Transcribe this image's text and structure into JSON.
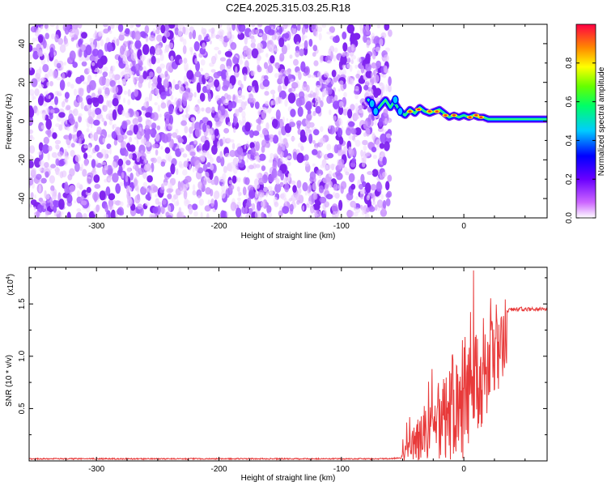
{
  "title": "C2E4.2025.315.03.25.R18",
  "chart_data": [
    {
      "type": "heatmap",
      "name": "spectrogram",
      "xlabel": "Height of straight line (km)",
      "ylabel": "Frequency (Hz)",
      "xlim": [
        -355,
        68
      ],
      "ylim": [
        -50,
        50
      ],
      "xticks": [
        -300,
        -200,
        -100,
        0
      ],
      "xtick_labels": [
        "-300",
        "-200",
        "-100",
        "0"
      ],
      "yticks": [
        -40,
        -20,
        0,
        20,
        40
      ],
      "ytick_labels": [
        "-40",
        "-20",
        "0",
        "20",
        "40"
      ],
      "noise_region_x": [
        -355,
        -60
      ],
      "signal_track": {
        "x": [
          -78,
          -75,
          -72,
          -68,
          -64,
          -60,
          -57,
          -55,
          -52,
          -48,
          -44,
          -40,
          -36,
          -32,
          -28,
          -24,
          -20,
          -16,
          -12,
          -8,
          -4,
          0,
          4,
          8,
          12,
          16,
          20,
          30,
          40,
          50,
          60,
          68
        ],
        "y": [
          11,
          9,
          5,
          8,
          11,
          7,
          10,
          8,
          5,
          3,
          6,
          4,
          7,
          5,
          4,
          5,
          6,
          4,
          2,
          3,
          2,
          3,
          2,
          3,
          2,
          2,
          1,
          1,
          1,
          1,
          1,
          1
        ]
      },
      "colorbar": {
        "label": "Normalized spectral amplitude",
        "range": [
          0,
          1
        ],
        "ticks": [
          0.0,
          0.2,
          0.4,
          0.6,
          0.8
        ],
        "tick_labels": [
          "0.0",
          "0.2",
          "0.4",
          "0.6",
          "0.8"
        ]
      }
    },
    {
      "type": "line",
      "name": "snr",
      "xlabel": "Height of straight line (km)",
      "ylabel": "SNR (10 * v/v)",
      "scale_label": "(x10",
      "scale_exponent": "4",
      "scale_suffix": ")",
      "xlim": [
        -355,
        68
      ],
      "ylim": [
        0,
        1.85
      ],
      "xticks": [
        -300,
        -200,
        -100,
        0
      ],
      "xtick_labels": [
        "-300",
        "-200",
        "-100",
        "0"
      ],
      "yticks": [
        0.5,
        1.0,
        1.5
      ],
      "ytick_labels": [
        "0.5",
        "1.0",
        "1.5"
      ],
      "color": "#e83a3a",
      "envelope": {
        "x": [
          -355,
          -60,
          -52,
          -48,
          -45,
          -40,
          -35,
          -30,
          -25,
          -20,
          -15,
          -10,
          -5,
          0,
          5,
          10,
          15,
          20,
          25,
          30,
          35,
          40,
          50,
          60,
          68
        ],
        "y": [
          0.02,
          0.02,
          0.03,
          0.12,
          0.28,
          0.35,
          0.45,
          0.55,
          0.7,
          0.8,
          0.9,
          1.0,
          1.05,
          1.15,
          1.2,
          1.25,
          1.3,
          1.35,
          1.4,
          1.42,
          1.44,
          1.45,
          1.45,
          1.45,
          1.45
        ]
      },
      "peak": {
        "x": 8,
        "y": 1.82
      }
    }
  ]
}
